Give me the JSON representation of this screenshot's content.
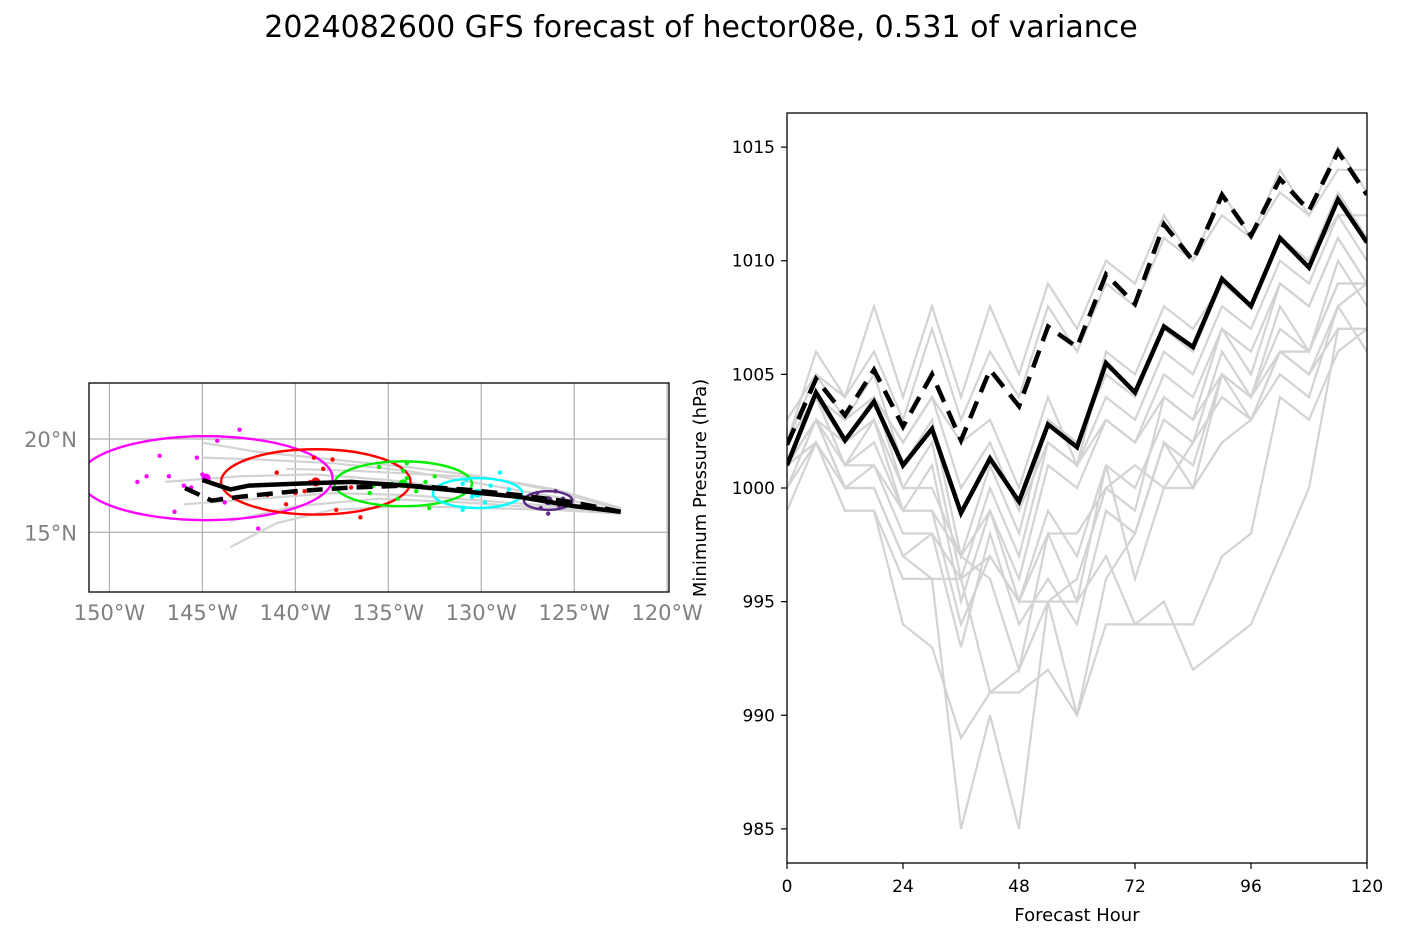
{
  "title": "2024082600 GFS forecast of hector08e, 0.531 of variance",
  "colors": {
    "member": "#d3d3d3",
    "mean": "#000000",
    "grid": "#b0b0b0",
    "ellipses": [
      "#ff00ff",
      "#ff0000",
      "#00ee00",
      "#00ffff",
      "#5b2a86"
    ]
  },
  "chart_data": [
    {
      "type": "map-track",
      "x_ticks": [
        "150°W",
        "145°W",
        "140°W",
        "135°W",
        "130°W",
        "125°W",
        "120°W"
      ],
      "x_tick_values": [
        -150,
        -145,
        -140,
        -135,
        -130,
        -125,
        -120
      ],
      "y_ticks": [
        "15°N",
        "20°N"
      ],
      "y_tick_values": [
        15,
        20
      ],
      "xlim": [
        -151.1,
        -119.9
      ],
      "ylim": [
        11.8,
        23.0
      ],
      "grid": true,
      "ensemble_mean_track": [
        [
          -122.5,
          16.1
        ],
        [
          -125.0,
          16.4
        ],
        [
          -128.0,
          16.9
        ],
        [
          -131.0,
          17.2
        ],
        [
          -134.0,
          17.5
        ],
        [
          -137.0,
          17.7
        ],
        [
          -140.0,
          17.6
        ],
        [
          -142.5,
          17.5
        ],
        [
          -143.5,
          17.3
        ],
        [
          -145.0,
          17.8
        ]
      ],
      "deterministic_track": [
        [
          -122.5,
          16.1
        ],
        [
          -125.0,
          16.6
        ],
        [
          -128.0,
          17.0
        ],
        [
          -131.0,
          17.3
        ],
        [
          -134.0,
          17.5
        ],
        [
          -137.0,
          17.4
        ],
        [
          -140.0,
          17.2
        ],
        [
          -143.0,
          16.9
        ],
        [
          -144.5,
          16.7
        ],
        [
          -146.0,
          17.4
        ]
      ],
      "member_tracks": [
        [
          [
            -122.5,
            16.1
          ],
          [
            -126.0,
            16.9
          ],
          [
            -130.0,
            17.6
          ],
          [
            -134.0,
            18.3
          ],
          [
            -138.0,
            18.7
          ],
          [
            -142.0,
            18.9
          ],
          [
            -145.0,
            19.0
          ]
        ],
        [
          [
            -122.5,
            16.1
          ],
          [
            -126.0,
            16.4
          ],
          [
            -130.0,
            16.7
          ],
          [
            -134.0,
            17.0
          ],
          [
            -138.0,
            17.1
          ],
          [
            -142.0,
            16.8
          ],
          [
            -146.0,
            16.5
          ]
        ],
        [
          [
            -122.5,
            16.2
          ],
          [
            -126.0,
            17.2
          ],
          [
            -130.0,
            18.0
          ],
          [
            -134.0,
            18.5
          ],
          [
            -138.0,
            18.9
          ],
          [
            -142.0,
            19.3
          ],
          [
            -145.0,
            19.8
          ]
        ],
        [
          [
            -122.5,
            16.0
          ],
          [
            -126.0,
            16.2
          ],
          [
            -130.0,
            16.3
          ],
          [
            -134.0,
            16.4
          ],
          [
            -138.0,
            16.2
          ],
          [
            -141.0,
            15.5
          ],
          [
            -143.5,
            14.2
          ]
        ],
        [
          [
            -122.5,
            16.1
          ],
          [
            -127.0,
            16.8
          ],
          [
            -131.0,
            17.3
          ],
          [
            -135.0,
            17.8
          ],
          [
            -139.0,
            18.1
          ],
          [
            -143.0,
            18.0
          ],
          [
            -147.0,
            17.7
          ]
        ],
        [
          [
            -122.5,
            16.3
          ],
          [
            -126.0,
            17.3
          ],
          [
            -129.5,
            17.9
          ],
          [
            -133.0,
            18.1
          ],
          [
            -137.0,
            18.3
          ],
          [
            -140.5,
            18.4
          ]
        ],
        [
          [
            -122.5,
            16.0
          ],
          [
            -126.5,
            16.3
          ],
          [
            -131.0,
            16.6
          ],
          [
            -135.5,
            16.8
          ],
          [
            -140.0,
            16.4
          ],
          [
            -143.5,
            15.6
          ]
        ]
      ],
      "ellipses": [
        {
          "color": "#ff00ff",
          "center": [
            -144.8,
            17.9
          ],
          "width_deg": 13.6,
          "height_deg": 4.5
        },
        {
          "color": "#ff0000",
          "center": [
            -138.9,
            17.7
          ],
          "width_deg": 10.2,
          "height_deg": 3.5
        },
        {
          "color": "#00ee00",
          "center": [
            -134.2,
            17.6
          ],
          "width_deg": 7.4,
          "height_deg": 2.4
        },
        {
          "color": "#00ffff",
          "center": [
            -130.2,
            17.1
          ],
          "width_deg": 4.8,
          "height_deg": 1.6
        },
        {
          "color": "#5b2a86",
          "center": [
            -126.4,
            16.7
          ],
          "width_deg": 2.6,
          "height_deg": 1.0
        }
      ],
      "scatter_points": [
        {
          "color": "#ff00ff",
          "lat_lon": [
            [
              -148.5,
              17.7
            ],
            [
              -146.5,
              16.1
            ],
            [
              -145.0,
              18.1
            ],
            [
              -144.0,
              16.8
            ],
            [
              -143.0,
              20.5
            ],
            [
              -144.2,
              19.9
            ],
            [
              -142.0,
              15.2
            ],
            [
              -147.3,
              19.1
            ],
            [
              -145.6,
              17.4
            ],
            [
              -146.0,
              17.5
            ],
            [
              -144.7,
              17.9
            ],
            [
              -148.0,
              18.0
            ],
            [
              -143.8,
              16.6
            ],
            [
              -145.3,
              19.0
            ],
            [
              -146.8,
              18.0
            ]
          ]
        },
        {
          "color": "#ff0000",
          "lat_lon": [
            [
              -141.0,
              18.2
            ],
            [
              -139.0,
              19.0
            ],
            [
              -138.0,
              18.9
            ],
            [
              -137.0,
              17.4
            ],
            [
              -136.5,
              15.8
            ],
            [
              -139.5,
              17.2
            ],
            [
              -139.2,
              17.7
            ],
            [
              -140.5,
              16.5
            ],
            [
              -137.8,
              16.2
            ],
            [
              -138.5,
              18.4
            ],
            [
              -141.5,
              17.0
            ],
            [
              -140.0,
              17.1
            ]
          ]
        },
        {
          "color": "#00ee00",
          "lat_lon": [
            [
              -135.5,
              18.5
            ],
            [
              -134.0,
              18.7
            ],
            [
              -133.5,
              17.2
            ],
            [
              -134.5,
              16.8
            ],
            [
              -132.5,
              18.0
            ],
            [
              -134.8,
              17.6
            ],
            [
              -134.2,
              18.3
            ],
            [
              -135.8,
              17.5
            ],
            [
              -133.0,
              17.7
            ],
            [
              -132.8,
              16.3
            ],
            [
              -134.0,
              17.9
            ],
            [
              -136.0,
              17.1
            ]
          ]
        },
        {
          "color": "#00ffff",
          "lat_lon": [
            [
              -131.0,
              17.6
            ],
            [
              -129.5,
              17.5
            ],
            [
              -130.5,
              16.9
            ],
            [
              -130.2,
              17.0
            ],
            [
              -129.0,
              18.2
            ],
            [
              -131.0,
              16.2
            ],
            [
              -128.5,
              17.3
            ],
            [
              -130.8,
              17.8
            ],
            [
              -129.8,
              16.6
            ]
          ]
        },
        {
          "color": "#5b2a86",
          "lat_lon": [
            [
              -127.0,
              17.1
            ],
            [
              -126.3,
              16.7
            ],
            [
              -125.8,
              16.4
            ],
            [
              -126.0,
              17.2
            ],
            [
              -126.8,
              16.3
            ],
            [
              -126.4,
              16.0
            ],
            [
              -125.6,
              16.8
            ]
          ]
        }
      ]
    },
    {
      "type": "line",
      "xlabel": "Forecast Hour",
      "ylabel": "Minimum Pressure (hPa)",
      "x": [
        0,
        6,
        12,
        18,
        24,
        30,
        36,
        42,
        48,
        54,
        60,
        66,
        72,
        78,
        84,
        90,
        96,
        102,
        108,
        114,
        120
      ],
      "xlim": [
        0,
        120
      ],
      "ylim": [
        983.5,
        1016.5
      ],
      "x_ticks": [
        0,
        24,
        48,
        72,
        96,
        120
      ],
      "y_ticks": [
        985,
        990,
        995,
        1000,
        1005,
        1010,
        1015
      ],
      "series": [
        {
          "style": "member",
          "values": [
            1001,
            1004,
            1002,
            1004,
            1000,
            1002,
            996,
            1000,
            997,
            1002,
            1001,
            1004,
            1003,
            1006,
            1005,
            1008,
            1007,
            1010,
            1009,
            1012,
            1010
          ]
        },
        {
          "style": "member",
          "values": [
            1002,
            1005,
            1003,
            1005,
            1001,
            1003,
            997,
            1001,
            998,
            1003,
            1002,
            1005,
            1004,
            1007,
            1006,
            1009,
            1008,
            1011,
            1010,
            1013,
            1011
          ]
        },
        {
          "style": "member",
          "values": [
            1000,
            1003,
            1001,
            1003,
            999,
            1001,
            995,
            999,
            996,
            1001,
            1000,
            1003,
            1002,
            1005,
            1004,
            1007,
            1006,
            1009,
            1008,
            1011,
            1009
          ]
        },
        {
          "style": "member",
          "values": [
            1002,
            1006,
            1004,
            1008,
            1004,
            1008,
            1004,
            1008,
            1005,
            1009,
            1007,
            1010,
            1009,
            1012,
            1010,
            1013,
            1011,
            1014,
            1012,
            1015,
            1013
          ]
        },
        {
          "style": "member",
          "values": [
            1003,
            1005,
            1004,
            1006,
            1003,
            1007,
            1003,
            1006,
            1004,
            1008,
            1006,
            1009,
            1008,
            1011,
            1010,
            1012,
            1011,
            1013,
            1012,
            1014,
            1014
          ]
        },
        {
          "style": "member",
          "values": [
            1001,
            1004,
            1001,
            1002,
            999,
            999,
            994,
            997,
            995,
            995,
            996,
            1000,
            999,
            1004,
            1003,
            1007,
            1005,
            1009,
            1008,
            1011,
            1009
          ]
        },
        {
          "style": "member",
          "values": [
            1000,
            1003,
            1000,
            1001,
            998,
            998,
            996,
            997,
            995,
            998,
            995,
            1001,
            996,
            1000,
            1002,
            1006,
            1004,
            1008,
            1006,
            1010,
            1008
          ]
        },
        {
          "style": "member",
          "values": [
            999,
            1002,
            1000,
            1000,
            997,
            998,
            993,
            998,
            994,
            996,
            994,
            999,
            998,
            1002,
            1001,
            1005,
            1004,
            1007,
            1006,
            1009,
            1009
          ]
        },
        {
          "style": "member",
          "values": [
            1000,
            1002,
            999,
            999,
            996,
            996,
            985,
            990,
            985,
            995,
            990,
            996,
            998,
            1002,
            1000,
            1005,
            1003,
            1006,
            1005,
            1008,
            1006
          ]
        },
        {
          "style": "member",
          "values": [
            1001,
            1002,
            999,
            999,
            994,
            993,
            989,
            991,
            991,
            992,
            990,
            994,
            994,
            995,
            992,
            993,
            994,
            997,
            1000,
            1007,
            1007
          ]
        },
        {
          "style": "member",
          "values": [
            1001,
            1003,
            1000,
            1000,
            997,
            996,
            996,
            991,
            992,
            995,
            995,
            997,
            994,
            994,
            994,
            997,
            998,
            1004,
            1003,
            1006,
            1007
          ]
        },
        {
          "style": "member",
          "values": [
            1002,
            1004,
            1001,
            1001,
            999,
            999,
            997,
            996,
            992,
            998,
            998,
            1000,
            1001,
            1000,
            1000,
            1002,
            1003,
            1005,
            1004,
            1008,
            1009
          ]
        },
        {
          "style": "member",
          "values": [
            1001,
            1004,
            1002,
            1004,
            1002,
            1004,
            1000,
            1002,
            999,
            1002,
            1001,
            1003,
            1002,
            1004,
            1003,
            1005,
            1004,
            1006,
            1006,
            1009,
            1009
          ]
        },
        {
          "style": "member",
          "values": [
            1002,
            1004,
            1003,
            1004,
            1002,
            1004,
            1002,
            1003,
            1000,
            1004,
            1001,
            1006,
            1005,
            1008,
            1007,
            1009,
            1008,
            1011,
            1010,
            1012,
            1012
          ]
        },
        {
          "style": "member",
          "values": [
            1001,
            1003,
            1002,
            1003,
            1000,
            1000,
            997,
            999,
            995,
            999,
            997,
            1001,
            1000,
            1003,
            1002,
            1004,
            1003,
            1006,
            1005,
            1007,
            1007
          ]
        },
        {
          "style": "det",
          "values": [
            1001.9,
            1004.8,
            1003.2,
            1005.2,
            1002.7,
            1005.0,
            1002.1,
            1005.2,
            1003.6,
            1007.1,
            1006.2,
            1009.4,
            1008.1,
            1011.6,
            1010.0,
            1012.9,
            1011.1,
            1013.6,
            1012.2,
            1014.8,
            1012.9
          ]
        },
        {
          "style": "mean",
          "values": [
            1001.0,
            1004.2,
            1002.1,
            1003.8,
            1001.0,
            1002.6,
            998.9,
            1001.3,
            999.4,
            1002.8,
            1001.8,
            1005.5,
            1004.2,
            1007.1,
            1006.2,
            1009.2,
            1008.0,
            1011.0,
            1009.7,
            1012.7,
            1010.8
          ]
        }
      ]
    }
  ]
}
